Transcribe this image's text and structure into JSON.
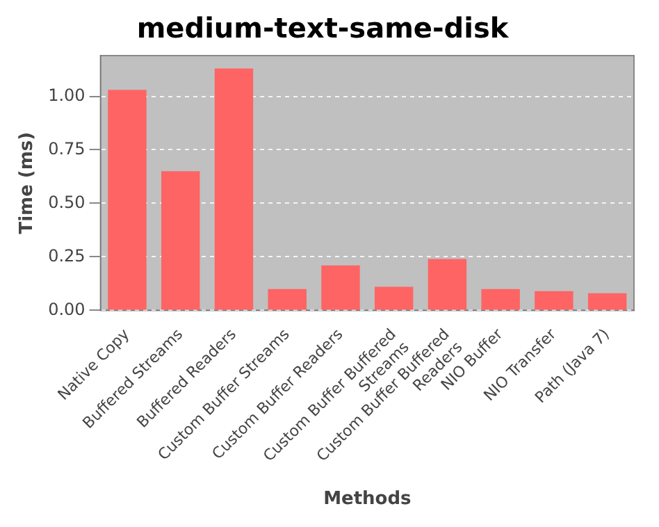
{
  "chart_data": {
    "type": "bar",
    "title": "medium-text-same-disk",
    "xlabel": "Methods",
    "ylabel": "Time (ms)",
    "categories": [
      "Native Copy",
      "Buffered Streams",
      "Buffered Readers",
      "Custom Buffer Streams",
      "Custom Buffer Readers",
      "Custom Buffer Buffered Streams",
      "Custom Buffer Buffered Readers",
      "NIO Buffer",
      "NIO Transfer",
      "Path (Java 7)"
    ],
    "values": [
      1.03,
      0.65,
      1.13,
      0.1,
      0.21,
      0.11,
      0.24,
      0.1,
      0.09,
      0.08
    ],
    "color": "#ff6464",
    "ylim": [
      0,
      1.19
    ],
    "yticks": [
      {
        "value": 0,
        "label": "0.00"
      },
      {
        "value": 0.25,
        "label": "0.25"
      },
      {
        "value": 0.5,
        "label": "0.50"
      },
      {
        "value": 0.75,
        "label": "0.75"
      },
      {
        "value": 1,
        "label": "1.00"
      }
    ],
    "grid": "y",
    "legend": false
  }
}
